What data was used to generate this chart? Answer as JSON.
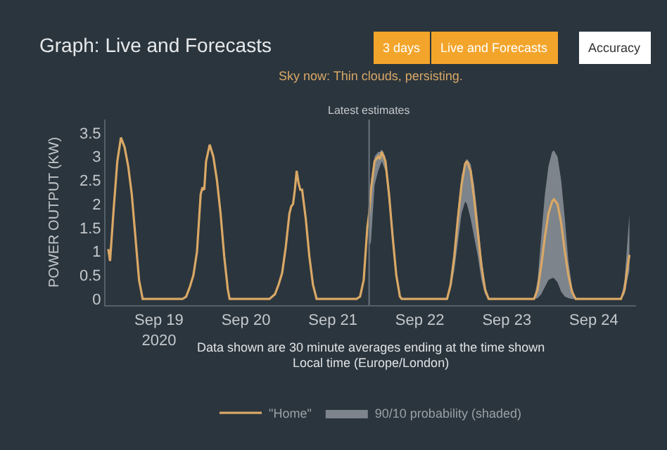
{
  "chart_data": {
    "type": "line",
    "title": "Graph: Live and Forecasts",
    "subtitle": "Sky now: Thin clouds, persisting.",
    "ylabel": "POWER OUTPUT (KW)",
    "annotations": [
      "3 days",
      "Live and Forecasts",
      "Accuracy",
      "Data shown are 30 minute averages ending at the time shown",
      "Local time (Europe/London)",
      "90/10 probability (shaded)"
    ],
    "x": [
      "2020-09-18T10:00",
      "2020-09-18T10:30",
      "2020-09-18T11:30",
      "2020-09-18T12:30",
      "2020-09-18T13:30",
      "2020-09-18T14:30",
      "2020-09-18T15:30",
      "2020-09-18T16:30",
      "2020-09-18T17:30",
      "2020-09-18T18:30",
      "2020-09-18T19:30",
      "2020-09-19T06:30",
      "2020-09-19T07:30",
      "2020-09-19T08:30",
      "2020-09-19T09:30",
      "2020-09-19T10:30",
      "2020-09-19T11:30",
      "2020-09-19T12:00",
      "2020-09-19T12:30",
      "2020-09-19T13:00",
      "2020-09-19T14:00",
      "2020-09-19T15:00",
      "2020-09-19T16:00",
      "2020-09-19T17:00",
      "2020-09-19T18:00",
      "2020-09-19T19:00",
      "2020-09-19T19:30",
      "2020-09-20T06:30",
      "2020-09-20T08:00",
      "2020-09-20T09:00",
      "2020-09-20T10:00",
      "2020-09-20T11:00",
      "2020-09-20T12:00",
      "2020-09-20T12:30",
      "2020-09-20T13:00",
      "2020-09-20T13:30",
      "2020-09-20T14:00",
      "2020-09-20T14:30",
      "2020-09-20T15:00",
      "2020-09-20T15:30",
      "2020-09-20T16:30",
      "2020-09-20T17:30",
      "2020-09-20T18:30",
      "2020-09-20T19:30",
      "2020-09-21T06:30",
      "2020-09-21T07:30",
      "2020-09-21T08:30",
      "2020-09-21T09:30",
      "2020-09-21T10:00",
      "2020-09-21T10:30",
      "2020-09-21T11:30",
      "2020-09-21T12:30",
      "2020-09-21T13:00",
      "2020-09-21T13:30",
      "2020-09-21T14:30",
      "2020-09-21T15:30",
      "2020-09-21T16:30",
      "2020-09-21T17:30",
      "2020-09-21T18:30",
      "2020-09-21T19:00",
      "2020-09-22T07:30",
      "2020-09-22T08:30",
      "2020-09-22T09:30",
      "2020-09-22T10:30",
      "2020-09-22T11:30",
      "2020-09-22T12:30",
      "2020-09-22T13:00",
      "2020-09-22T14:00",
      "2020-09-22T15:00",
      "2020-09-22T16:00",
      "2020-09-22T17:00",
      "2020-09-22T18:00",
      "2020-09-22T19:00",
      "2020-09-23T07:30",
      "2020-09-23T08:30",
      "2020-09-23T09:30",
      "2020-09-23T10:30",
      "2020-09-23T11:30",
      "2020-09-23T12:30",
      "2020-09-23T13:00",
      "2020-09-23T14:00",
      "2020-09-23T15:00",
      "2020-09-23T16:00",
      "2020-09-23T17:00",
      "2020-09-23T18:00",
      "2020-09-23T19:00",
      "2020-09-24T07:30",
      "2020-09-24T08:30",
      "2020-09-24T09:00",
      "2020-09-24T09:50"
    ],
    "series": [
      {
        "name": "\"Home\"",
        "color": "#d9a866",
        "values": [
          1.05,
          0.8,
          1.9,
          2.9,
          3.4,
          3.2,
          2.8,
          2.2,
          1.3,
          0.4,
          0,
          0,
          0.05,
          0.25,
          0.5,
          1.0,
          2.2,
          2.35,
          2.3,
          2.9,
          3.25,
          3.0,
          2.5,
          1.8,
          0.9,
          0.2,
          0,
          0,
          0.1,
          0.3,
          0.55,
          1.1,
          1.8,
          1.95,
          2.0,
          2.3,
          2.7,
          2.45,
          2.3,
          2.3,
          1.7,
          0.9,
          0.3,
          0,
          0,
          0.05,
          0.4,
          1.5,
          1.8,
          2.3,
          2.9,
          3.0,
          2.95,
          3.1,
          2.9,
          2.2,
          1.3,
          0.5,
          0.05,
          0,
          0,
          0.3,
          0.9,
          1.7,
          2.4,
          2.85,
          2.9,
          2.7,
          2.1,
          1.4,
          0.7,
          0.2,
          0,
          0,
          0.2,
          0.7,
          1.3,
          1.8,
          2.05,
          2.1,
          2.0,
          1.6,
          1.0,
          0.5,
          0.15,
          0,
          0,
          0.2,
          0.5,
          0.93
        ],
        "lower": [
          null,
          null,
          null,
          null,
          null,
          null,
          null,
          null,
          null,
          null,
          null,
          null,
          null,
          null,
          null,
          null,
          null,
          null,
          null,
          null,
          null,
          null,
          null,
          null,
          null,
          null,
          null,
          null,
          null,
          null,
          null,
          null,
          null,
          null,
          null,
          null,
          null,
          null,
          null,
          null,
          null,
          null,
          null,
          null,
          null,
          null,
          null,
          null,
          1.1,
          1.2,
          2.4,
          2.7,
          2.8,
          2.9,
          2.7,
          2.0,
          1.2,
          0.4,
          0.02,
          0,
          0,
          0.2,
          0.6,
          1.2,
          1.8,
          2.05,
          2.0,
          1.7,
          1.3,
          0.9,
          0.4,
          0.1,
          0,
          0,
          0.02,
          0.1,
          0.25,
          0.4,
          0.44,
          0.44,
          0.35,
          0.15,
          0.05,
          0.02,
          0,
          0,
          0,
          0.1,
          0.3,
          0.6
        ],
        "upper": [
          null,
          null,
          null,
          null,
          null,
          null,
          null,
          null,
          null,
          null,
          null,
          null,
          null,
          null,
          null,
          null,
          null,
          null,
          null,
          null,
          null,
          null,
          null,
          null,
          null,
          null,
          null,
          null,
          null,
          null,
          null,
          null,
          null,
          null,
          null,
          null,
          null,
          null,
          null,
          null,
          null,
          null,
          null,
          null,
          null,
          null,
          null,
          null,
          1.9,
          2.5,
          3.0,
          3.1,
          3.1,
          3.15,
          3.0,
          2.3,
          1.5,
          0.6,
          0.1,
          0,
          0,
          0.35,
          1.0,
          1.9,
          2.6,
          2.9,
          2.95,
          2.85,
          2.4,
          1.7,
          0.9,
          0.3,
          0,
          0,
          0.4,
          1.3,
          2.2,
          2.8,
          3.1,
          3.13,
          3.0,
          2.5,
          1.7,
          0.8,
          0.25,
          0,
          0,
          0.4,
          0.9,
          1.78
        ]
      }
    ],
    "xlim": [
      "2020-09-18T09:15",
      "2020-09-24T11:40"
    ],
    "xticks": [
      {
        "value": "2020-09-19",
        "label": "Sep 19\n2020"
      },
      {
        "value": "2020-09-20",
        "label": "Sep 20"
      },
      {
        "value": "2020-09-21",
        "label": "Sep 21"
      },
      {
        "value": "2020-09-22",
        "label": "Sep 22"
      },
      {
        "value": "2020-09-23",
        "label": "Sep 23"
      },
      {
        "value": "2020-09-24",
        "label": "Sep 24"
      }
    ],
    "ylim": [
      -0.13,
      3.78
    ],
    "yticks": [
      0,
      0.5,
      1,
      1.5,
      2,
      2.5,
      3,
      3.5
    ],
    "ref_lines": [
      {
        "axis": "x",
        "value": "2020-09-21T10:00",
        "label": "Latest estimates",
        "color": "#6b747c"
      }
    ],
    "grid": false,
    "legend": "bottom",
    "marker": "none",
    "line_style": "solid"
  }
}
